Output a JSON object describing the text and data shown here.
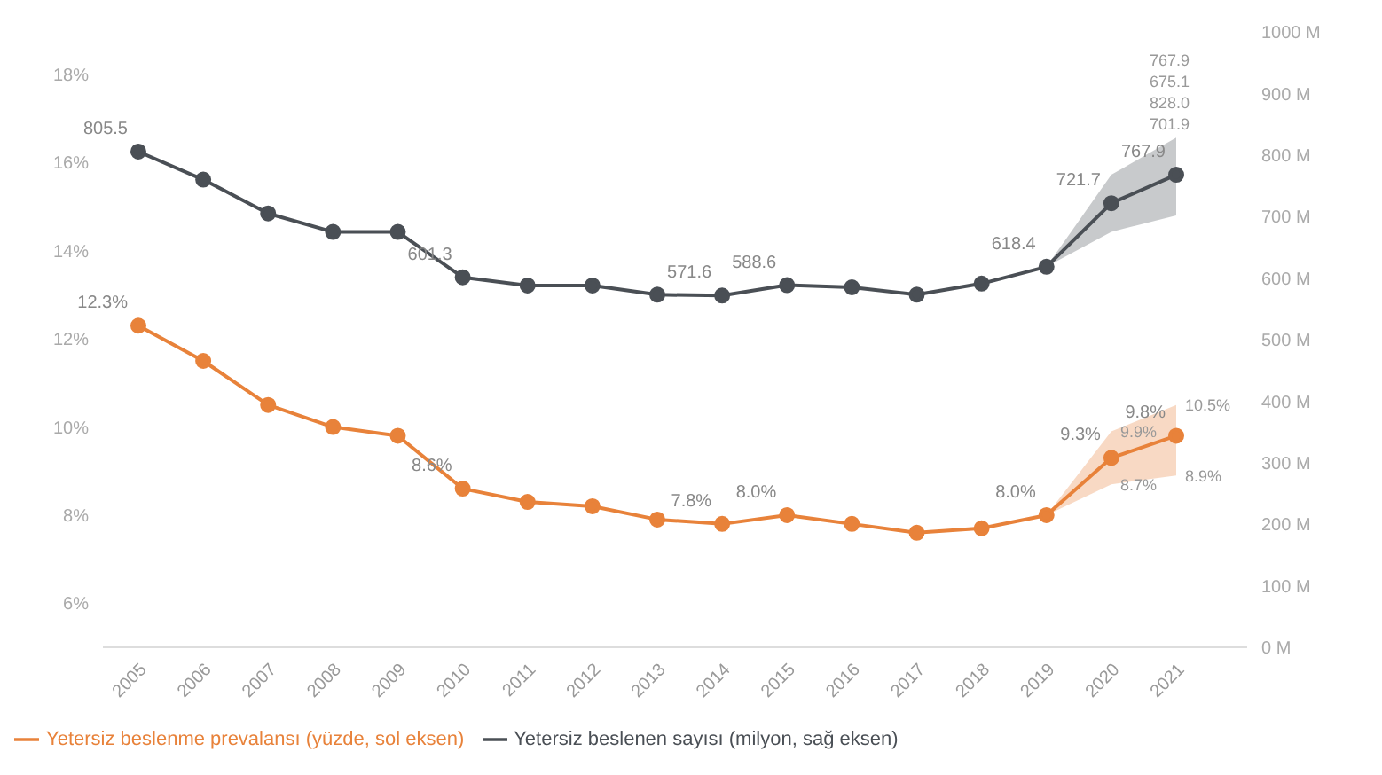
{
  "chart_data": {
    "type": "line",
    "categories": [
      "2005",
      "2006",
      "2007",
      "2008",
      "2009",
      "2010",
      "2011",
      "2012",
      "2013",
      "2014",
      "2015",
      "2016",
      "2017",
      "2018",
      "2019",
      "2020",
      "2021"
    ],
    "series": [
      {
        "name": "Yetersiz beslenme prevalansı (yüzde, sol eksen)",
        "color": "#e8823a",
        "values": [
          12.3,
          11.5,
          10.5,
          10.0,
          9.8,
          8.6,
          8.3,
          8.2,
          7.9,
          7.8,
          8.0,
          7.8,
          7.6,
          7.7,
          8.0,
          9.3,
          9.8
        ],
        "lower": [
          null,
          null,
          null,
          null,
          null,
          null,
          null,
          null,
          null,
          null,
          null,
          null,
          null,
          null,
          8.0,
          8.7,
          8.9
        ],
        "upper": [
          null,
          null,
          null,
          null,
          null,
          null,
          null,
          null,
          null,
          null,
          null,
          null,
          null,
          null,
          8.0,
          9.9,
          10.5
        ],
        "value_labels": [
          "12.3%",
          null,
          null,
          null,
          null,
          "8.6%",
          null,
          null,
          null,
          "7.8%",
          "8.0%",
          null,
          null,
          null,
          "8.0%",
          "9.3%",
          "9.8%"
        ]
      },
      {
        "name": "Yetersiz beslenen sayısı (milyon, sağ eksen)",
        "color": "#4a4f55",
        "axis": "y2",
        "values": [
          805.5,
          760,
          705,
          675,
          675,
          601.3,
          588,
          588,
          573,
          571.6,
          588.6,
          585,
          573,
          591,
          618.4,
          721.7,
          767.9
        ],
        "lower": [
          null,
          null,
          null,
          null,
          null,
          null,
          null,
          null,
          null,
          null,
          null,
          null,
          null,
          null,
          618.4,
          675.1,
          701.9
        ],
        "upper": [
          null,
          null,
          null,
          null,
          null,
          null,
          null,
          null,
          null,
          null,
          null,
          null,
          null,
          null,
          618.4,
          767.9,
          828.0
        ],
        "value_labels": [
          "805.5",
          null,
          null,
          null,
          null,
          "601.3",
          null,
          null,
          null,
          "571.6",
          "588.6",
          null,
          null,
          null,
          "618.4",
          "721.7",
          "767.9"
        ]
      }
    ],
    "annotations": [
      {
        "text": "9.9%",
        "x": "2020",
        "y": 9.9
      },
      {
        "text": "8.7%",
        "x": "2020",
        "y": 8.7
      },
      {
        "text": "10.5%",
        "x": "2021",
        "y": 10.5
      },
      {
        "text": "8.9%",
        "x": "2021",
        "y": 8.9
      },
      "767.9",
      "675.1",
      "828.0",
      "701.9"
    ],
    "ylim": [
      5,
      18
    ],
    "yticks": [
      {
        "value": 6,
        "label": "6%"
      },
      {
        "value": 8,
        "label": "8%"
      },
      {
        "value": 10,
        "label": "10%"
      },
      {
        "value": 12,
        "label": "12%"
      },
      {
        "value": 14,
        "label": "14%"
      },
      {
        "value": 16,
        "label": "16%"
      },
      {
        "value": 18,
        "label": "18%"
      }
    ],
    "y2lim": [
      0,
      1000
    ],
    "y2ticks": [
      {
        "value": 0,
        "label": "0 M"
      },
      {
        "value": 100,
        "label": "100 M"
      },
      {
        "value": 200,
        "label": "200 M"
      },
      {
        "value": 300,
        "label": "300 M"
      },
      {
        "value": 400,
        "label": "400 M"
      },
      {
        "value": 500,
        "label": "500 M"
      },
      {
        "value": 600,
        "label": "600 M"
      },
      {
        "value": 700,
        "label": "700 M"
      },
      {
        "value": 800,
        "label": "800 M"
      },
      {
        "value": 900,
        "label": "900 M"
      },
      {
        "value": 1000,
        "label": "1000 M"
      }
    ],
    "grid": false,
    "legend": "bottom",
    "marker": "circle",
    "line_style": "solid"
  }
}
